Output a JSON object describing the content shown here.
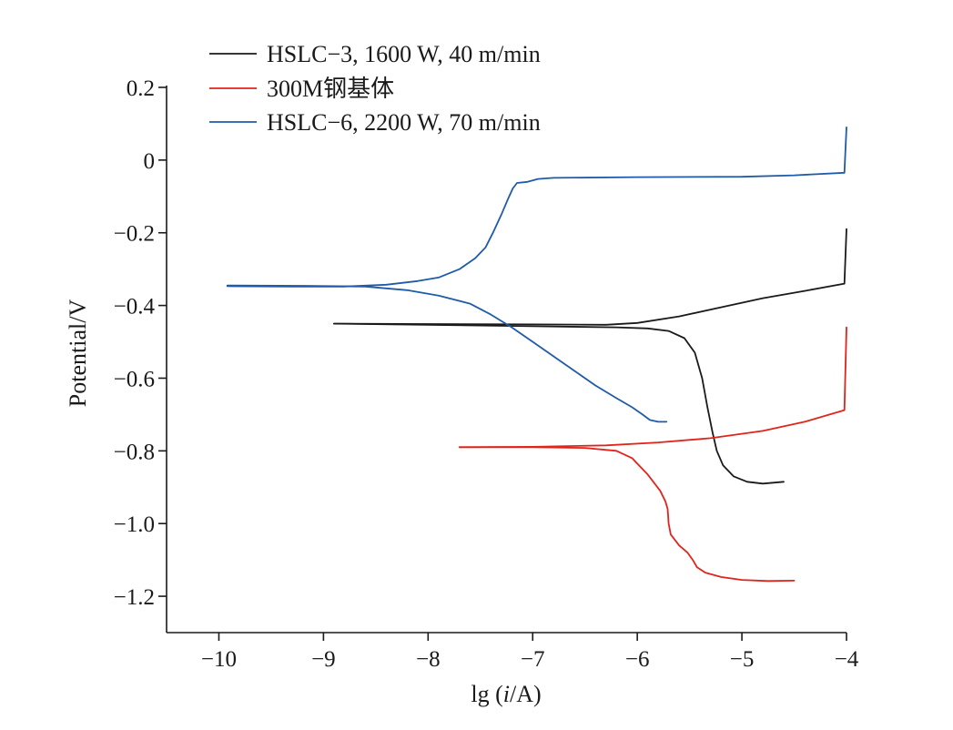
{
  "chart_data": {
    "type": "line",
    "xlabel_parts": [
      "lg (",
      "i",
      "/A)"
    ],
    "ylabel": "Potential/V",
    "xlim": [
      -10.5,
      -4
    ],
    "ylim": [
      -1.3,
      0.2
    ],
    "grid": false,
    "legend_position": "top-left",
    "x_ticks": [
      -10,
      -9,
      -8,
      -7,
      -6,
      -5,
      -4
    ],
    "x_tick_labels": [
      "−10",
      "−9",
      "−8",
      "−7",
      "−6",
      "−5",
      "−4"
    ],
    "y_ticks": [
      0.2,
      0,
      -0.2,
      -0.4,
      -0.6,
      -0.8,
      -1.0,
      -1.2
    ],
    "y_tick_labels": [
      "0.2",
      "0",
      "−0.2",
      "−0.4",
      "−0.6",
      "−0.8",
      "−1.0",
      "−1.2"
    ],
    "series": [
      {
        "name": "HSLC−3, 1600 W, 40 m/min",
        "color": "#1a1a1a",
        "anodic": [
          [
            -8.9,
            -0.45
          ],
          [
            -8.0,
            -0.451
          ],
          [
            -7.0,
            -0.452
          ],
          [
            -6.3,
            -0.453
          ],
          [
            -6.0,
            -0.448
          ],
          [
            -5.6,
            -0.43
          ],
          [
            -5.2,
            -0.405
          ],
          [
            -4.8,
            -0.38
          ],
          [
            -4.4,
            -0.36
          ],
          [
            -4.02,
            -0.34
          ],
          [
            -4.0,
            -0.19
          ]
        ],
        "cathodic": [
          [
            -8.9,
            -0.45
          ],
          [
            -8.0,
            -0.453
          ],
          [
            -7.0,
            -0.457
          ],
          [
            -6.2,
            -0.46
          ],
          [
            -5.9,
            -0.463
          ],
          [
            -5.7,
            -0.47
          ],
          [
            -5.55,
            -0.49
          ],
          [
            -5.45,
            -0.53
          ],
          [
            -5.38,
            -0.6
          ],
          [
            -5.33,
            -0.68
          ],
          [
            -5.28,
            -0.75
          ],
          [
            -5.24,
            -0.8
          ],
          [
            -5.18,
            -0.84
          ],
          [
            -5.08,
            -0.87
          ],
          [
            -4.95,
            -0.885
          ],
          [
            -4.8,
            -0.89
          ],
          [
            -4.6,
            -0.885
          ]
        ]
      },
      {
        "name": "300M钢基体",
        "color": "#e0241b",
        "anodic": [
          [
            -7.7,
            -0.79
          ],
          [
            -7.0,
            -0.789
          ],
          [
            -6.3,
            -0.785
          ],
          [
            -5.8,
            -0.777
          ],
          [
            -5.3,
            -0.765
          ],
          [
            -4.8,
            -0.745
          ],
          [
            -4.4,
            -0.72
          ],
          [
            -4.02,
            -0.688
          ],
          [
            -4.0,
            -0.46
          ]
        ],
        "cathodic": [
          [
            -7.7,
            -0.79
          ],
          [
            -7.0,
            -0.79
          ],
          [
            -6.5,
            -0.792
          ],
          [
            -6.2,
            -0.8
          ],
          [
            -6.05,
            -0.82
          ],
          [
            -5.9,
            -0.865
          ],
          [
            -5.78,
            -0.91
          ],
          [
            -5.73,
            -0.94
          ],
          [
            -5.71,
            -0.96
          ],
          [
            -5.7,
            -1.0
          ],
          [
            -5.68,
            -1.03
          ],
          [
            -5.6,
            -1.06
          ],
          [
            -5.52,
            -1.08
          ],
          [
            -5.47,
            -1.1
          ],
          [
            -5.43,
            -1.12
          ],
          [
            -5.35,
            -1.135
          ],
          [
            -5.2,
            -1.147
          ],
          [
            -5.0,
            -1.155
          ],
          [
            -4.75,
            -1.158
          ],
          [
            -4.5,
            -1.157
          ]
        ]
      },
      {
        "name": "HSLC−6, 2200 W, 70 m/min",
        "color": "#1f5ba8",
        "anodic": [
          [
            -9.92,
            -0.347
          ],
          [
            -9.3,
            -0.348
          ],
          [
            -8.8,
            -0.348
          ],
          [
            -8.4,
            -0.343
          ],
          [
            -8.1,
            -0.333
          ],
          [
            -7.9,
            -0.323
          ],
          [
            -7.7,
            -0.3
          ],
          [
            -7.55,
            -0.27
          ],
          [
            -7.45,
            -0.24
          ],
          [
            -7.38,
            -0.2
          ],
          [
            -7.3,
            -0.15
          ],
          [
            -7.24,
            -0.11
          ],
          [
            -7.19,
            -0.078
          ],
          [
            -7.15,
            -0.063
          ],
          [
            -7.05,
            -0.06
          ],
          [
            -6.95,
            -0.052
          ],
          [
            -6.8,
            -0.049
          ],
          [
            -6.0,
            -0.047
          ],
          [
            -5.0,
            -0.046
          ],
          [
            -4.5,
            -0.042
          ],
          [
            -4.02,
            -0.035
          ],
          [
            -4.0,
            0.09
          ]
        ],
        "cathodic": [
          [
            -9.92,
            -0.345
          ],
          [
            -9.2,
            -0.346
          ],
          [
            -8.6,
            -0.348
          ],
          [
            -8.2,
            -0.358
          ],
          [
            -7.9,
            -0.373
          ],
          [
            -7.6,
            -0.395
          ],
          [
            -7.4,
            -0.425
          ],
          [
            -7.2,
            -0.46
          ],
          [
            -7.0,
            -0.5
          ],
          [
            -6.8,
            -0.54
          ],
          [
            -6.6,
            -0.58
          ],
          [
            -6.4,
            -0.62
          ],
          [
            -6.2,
            -0.655
          ],
          [
            -6.05,
            -0.68
          ],
          [
            -5.95,
            -0.7
          ],
          [
            -5.88,
            -0.715
          ],
          [
            -5.8,
            -0.72
          ],
          [
            -5.72,
            -0.72
          ]
        ]
      }
    ]
  }
}
